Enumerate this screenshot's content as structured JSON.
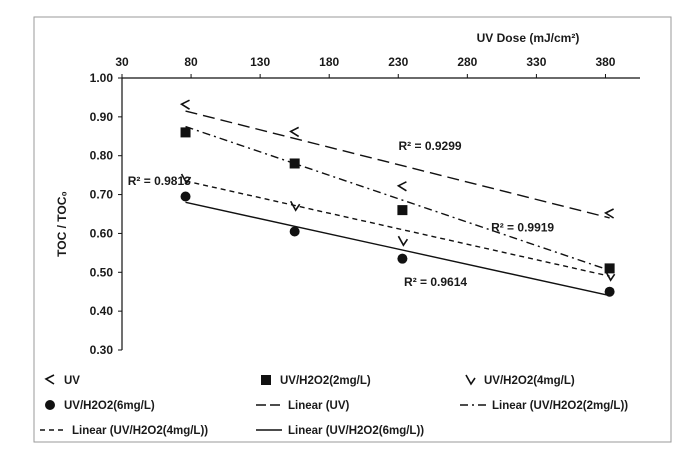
{
  "chart_data": {
    "type": "scatter",
    "x2label": "UV Dose (mJ/cm²)",
    "ylabel": "TOC / TOC₀",
    "xlim": [
      30,
      405
    ],
    "ylim": [
      0.3,
      1.0
    ],
    "xticks": [
      30,
      80,
      130,
      180,
      230,
      280,
      330,
      380
    ],
    "yticks": [
      0.3,
      0.4,
      0.5,
      0.6,
      0.7,
      0.8,
      0.9,
      1.0
    ],
    "x_axis_position": "top",
    "grid": false,
    "legend_position": "bottom",
    "series": [
      {
        "name": "UV",
        "marker": "open-corner",
        "x": [
          76,
          155,
          233,
          383
        ],
        "y": [
          0.93,
          0.86,
          0.72,
          0.65
        ]
      },
      {
        "name": "UV/H2O2(2mg/L)",
        "marker": "filled-square",
        "x": [
          76,
          155,
          233,
          383
        ],
        "y": [
          0.86,
          0.78,
          0.66,
          0.51
        ]
      },
      {
        "name": "UV/H2O2(4mg/L)",
        "marker": "open-corner-rotated",
        "x": [
          76,
          155,
          233,
          383
        ],
        "y": [
          0.74,
          0.67,
          0.58,
          0.49
        ]
      },
      {
        "name": "UV/H2O2(6mg/L)",
        "marker": "filled-circle",
        "x": [
          76,
          155,
          233,
          383
        ],
        "y": [
          0.695,
          0.605,
          0.535,
          0.45
        ]
      }
    ],
    "trendlines": [
      {
        "name": "Linear (UV)",
        "dash": "long-dash",
        "x": [
          76,
          383
        ],
        "y": [
          0.915,
          0.64
        ]
      },
      {
        "name": "Linear (UV/H2O2(2mg/L))",
        "dash": "dash-dot",
        "x": [
          76,
          383
        ],
        "y": [
          0.875,
          0.505
        ]
      },
      {
        "name": "Linear (UV/H2O2(4mg/L))",
        "dash": "short-dash",
        "x": [
          76,
          383
        ],
        "y": [
          0.735,
          0.49
        ]
      },
      {
        "name": "Linear (UV/H2O2(6mg/L))",
        "dash": "solid",
        "x": [
          76,
          383
        ],
        "y": [
          0.68,
          0.44
        ]
      }
    ],
    "annotations": [
      {
        "text": "R² = 0.9299",
        "x": 253,
        "y": 0.825
      },
      {
        "text": "R² = 0.9919",
        "x": 320,
        "y": 0.615
      },
      {
        "text": "R² = 0.9813",
        "x": 57,
        "y": 0.735
      },
      {
        "text": "R² = 0.9614",
        "x": 257,
        "y": 0.475
      }
    ],
    "legend": [
      {
        "label": "UV",
        "marker": "open-corner"
      },
      {
        "label": "UV/H2O2(2mg/L)",
        "marker": "filled-square"
      },
      {
        "label": "UV/H2O2(4mg/L)",
        "marker": "open-corner-rotated"
      },
      {
        "label": "UV/H2O2(6mg/L)",
        "marker": "filled-circle"
      },
      {
        "label": "Linear (UV)",
        "marker": "long-dash"
      },
      {
        "label": "Linear (UV/H2O2(2mg/L))",
        "marker": "dash-dot"
      },
      {
        "label": "Linear (UV/H2O2(4mg/L))",
        "marker": "short-dash"
      },
      {
        "label": "Linear (UV/H2O2(6mg/L))",
        "marker": "solid"
      }
    ]
  }
}
